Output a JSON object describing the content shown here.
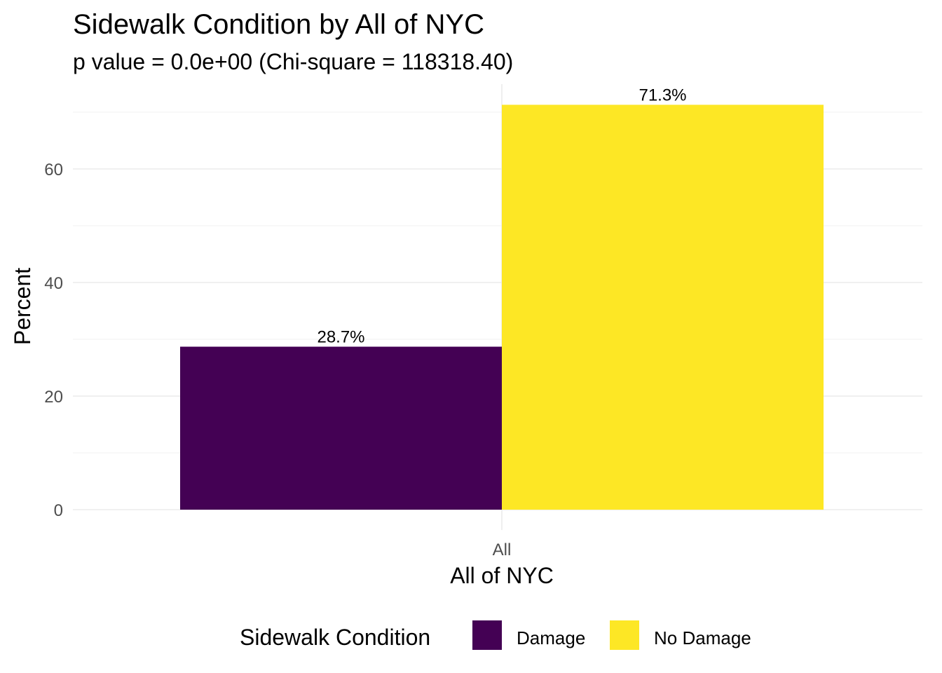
{
  "chart_data": {
    "type": "bar",
    "title": "Sidewalk Condition by All of NYC",
    "subtitle": "p value = 0.0e+00 (Chi-square = 118318.40)",
    "xlabel": "All of NYC",
    "ylabel": "Percent",
    "categories": [
      "All"
    ],
    "series": [
      {
        "name": "Damage",
        "values": [
          28.7
        ],
        "label": "28.7%",
        "color": "#440154"
      },
      {
        "name": "No Damage",
        "values": [
          71.3
        ],
        "label": "71.3%",
        "color": "#FDE725"
      }
    ],
    "y_ticks": [
      0,
      20,
      40,
      60
    ],
    "ylim": [
      0,
      74.9
    ],
    "grid": true,
    "legend": {
      "title": "Sidewalk Condition",
      "position": "bottom"
    }
  }
}
